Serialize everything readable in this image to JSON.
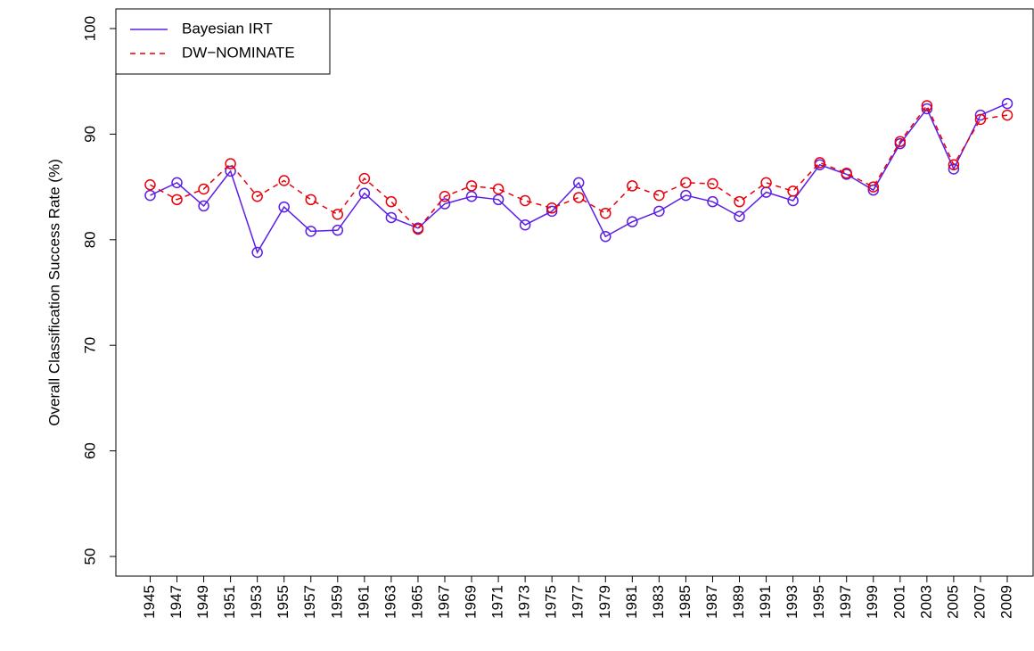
{
  "chart_data": {
    "type": "line",
    "y_label": "Overall Classification Success Rate (%)",
    "x": [
      1945,
      1947,
      1949,
      1951,
      1953,
      1955,
      1957,
      1959,
      1961,
      1963,
      1965,
      1967,
      1969,
      1971,
      1973,
      1975,
      1977,
      1979,
      1981,
      1983,
      1985,
      1987,
      1989,
      1991,
      1993,
      1995,
      1997,
      1999,
      2001,
      2003,
      2005,
      2007,
      2009
    ],
    "series": [
      {
        "name": "Bayesian IRT",
        "color": "#5b1fe6",
        "dash": false,
        "values": [
          84.2,
          85.4,
          83.2,
          86.5,
          78.8,
          83.1,
          80.8,
          80.9,
          84.4,
          82.1,
          81.1,
          83.4,
          84.1,
          83.8,
          81.4,
          82.7,
          85.4,
          80.3,
          81.7,
          82.7,
          84.2,
          83.6,
          82.2,
          84.5,
          83.7,
          87.1,
          86.2,
          84.7,
          89.1,
          92.4,
          86.7,
          91.8,
          92.9
        ]
      },
      {
        "name": "DW−NOMINATE",
        "color": "#e8000b",
        "dash": true,
        "values": [
          85.2,
          83.8,
          84.8,
          87.2,
          84.1,
          85.6,
          83.8,
          82.4,
          85.8,
          83.6,
          81.0,
          84.1,
          85.1,
          84.8,
          83.7,
          83.0,
          84.0,
          82.5,
          85.1,
          84.2,
          85.4,
          85.3,
          83.6,
          85.4,
          84.6,
          87.3,
          86.3,
          85.0,
          89.3,
          92.7,
          87.1,
          91.4,
          91.8
        ]
      }
    ],
    "xlim": [
      1942.44,
      2010.93
    ],
    "xticks": [
      1945,
      1947,
      1949,
      1951,
      1953,
      1955,
      1957,
      1959,
      1961,
      1963,
      1965,
      1967,
      1969,
      1971,
      1973,
      1975,
      1977,
      1979,
      1981,
      1983,
      1985,
      1987,
      1989,
      1991,
      1993,
      1995,
      1997,
      1999,
      2001,
      2003,
      2005,
      2007,
      2009
    ],
    "ylim": [
      48.14,
      101.86
    ],
    "yticks": [
      50,
      60,
      70,
      80,
      90,
      100
    ],
    "legend": "top-left",
    "grid": false
  }
}
